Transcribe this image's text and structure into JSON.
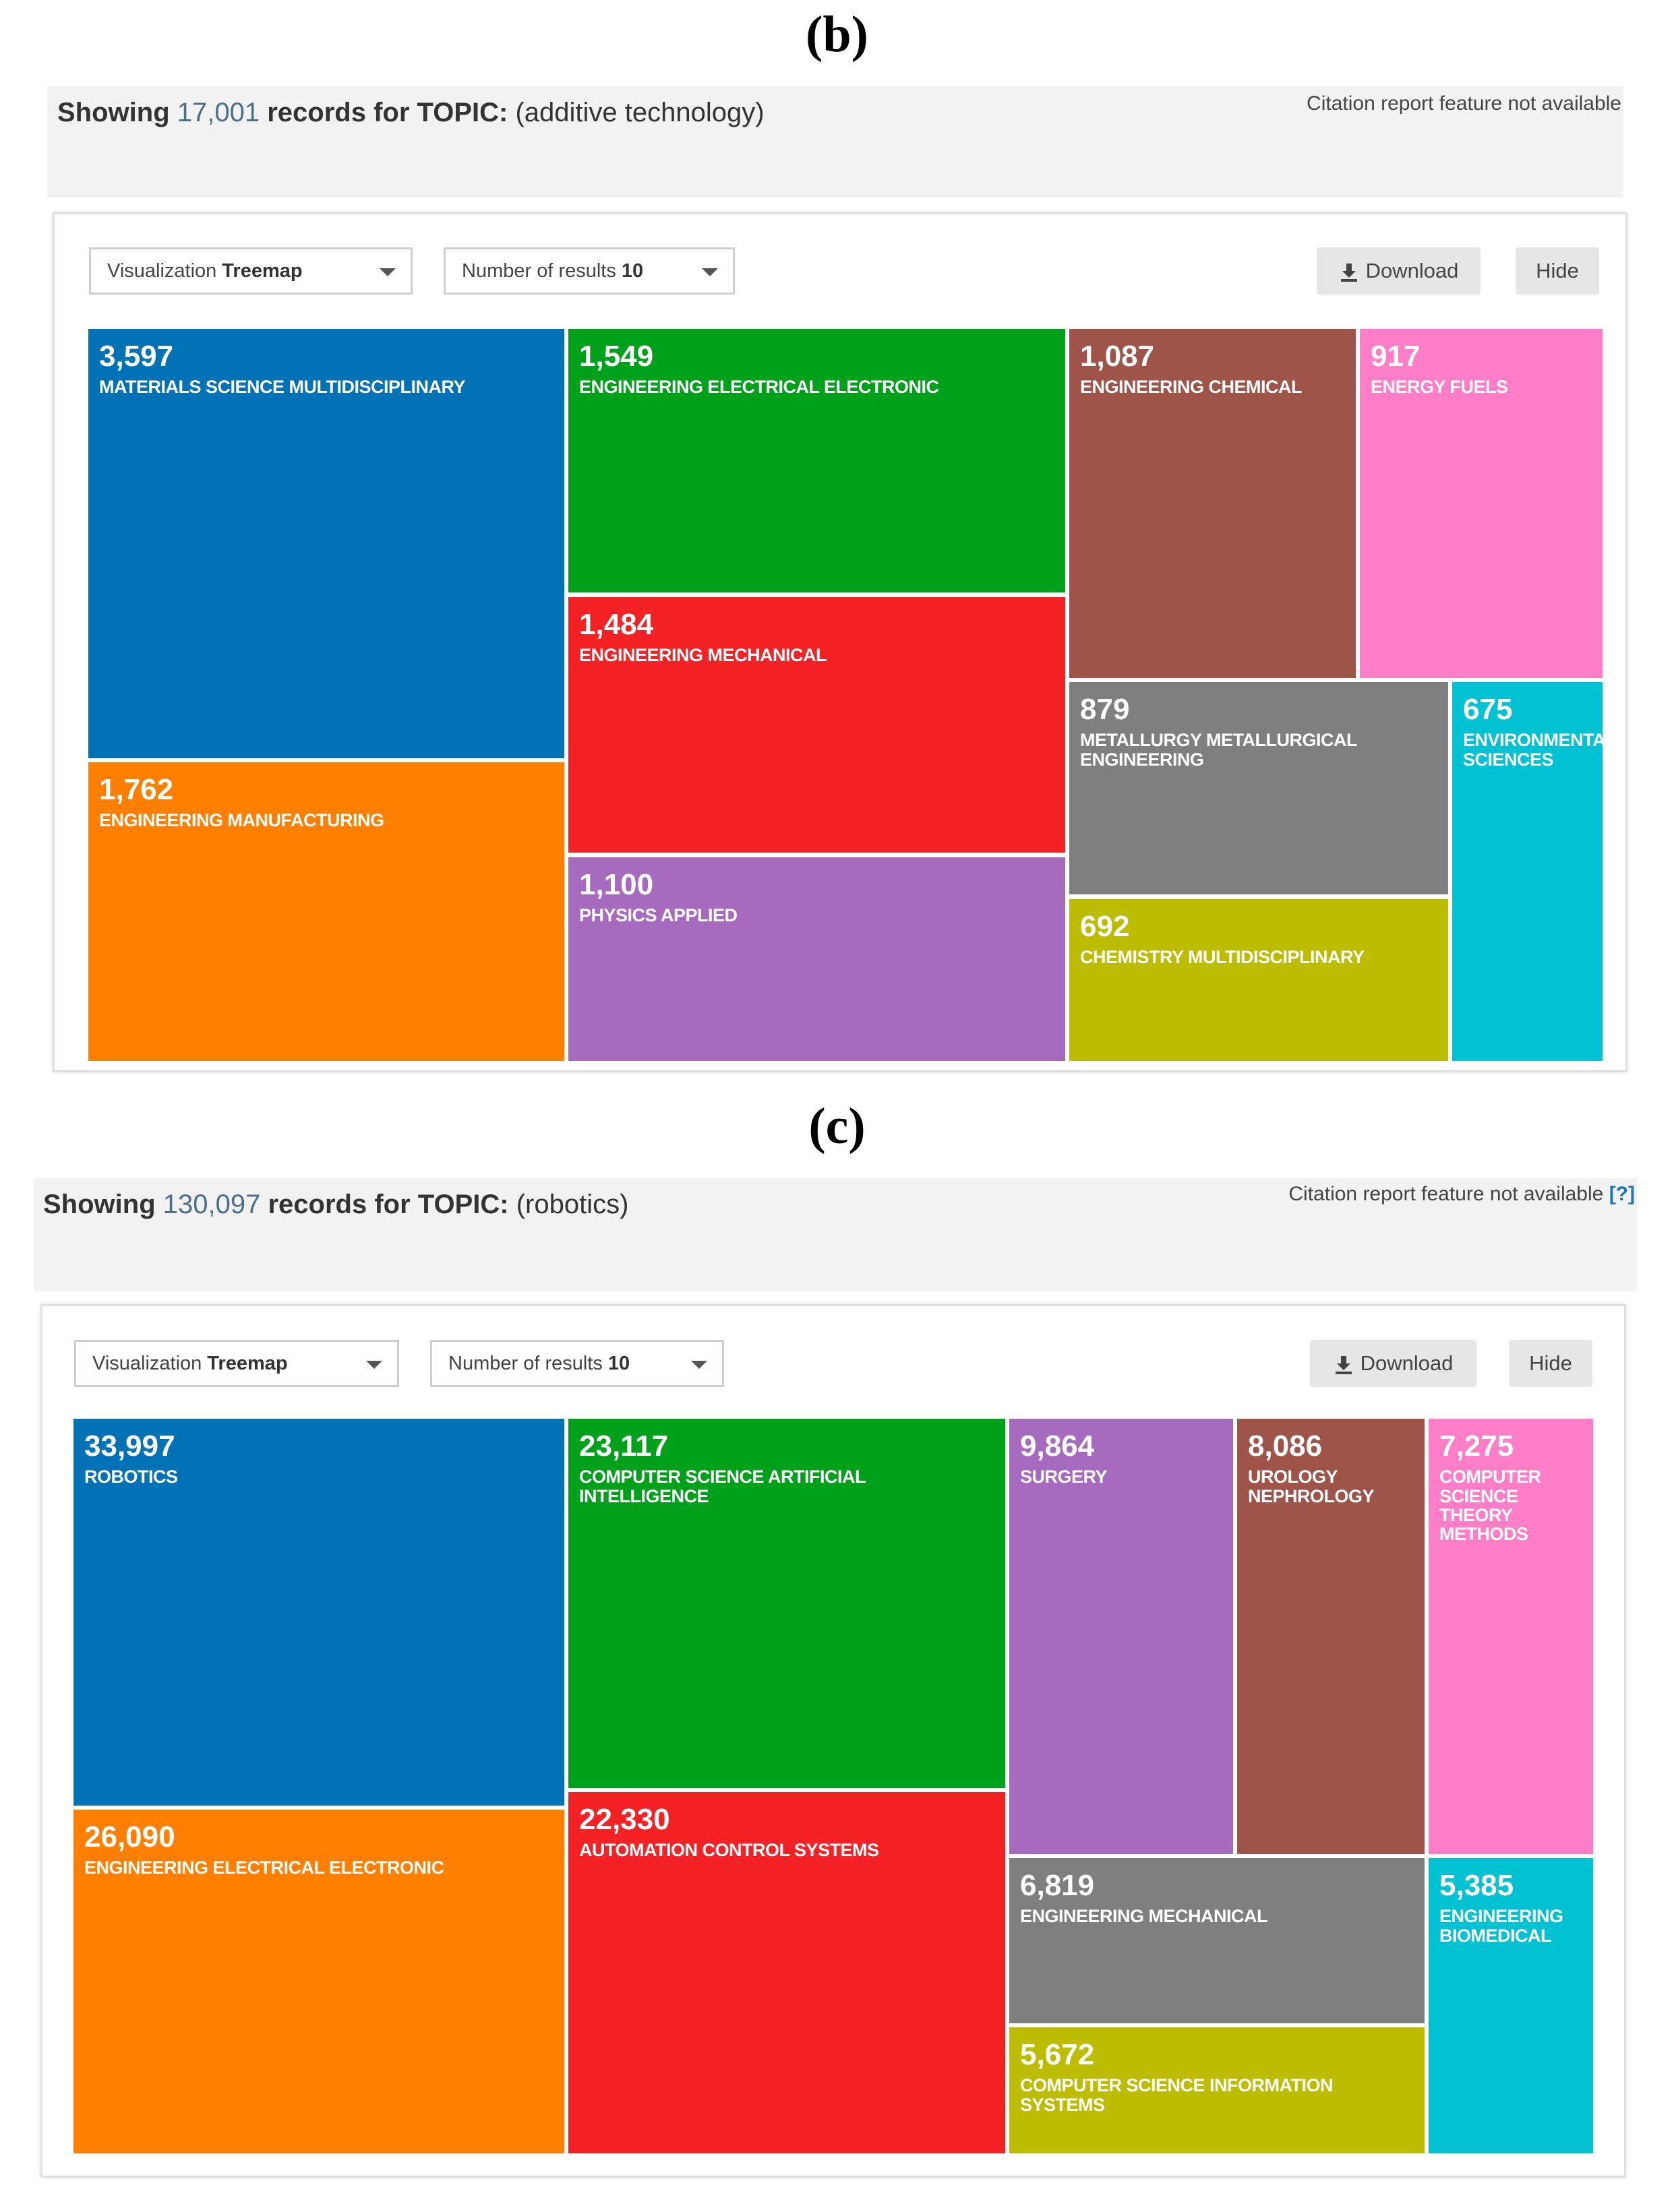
{
  "panels": [
    {
      "label": "(b)",
      "showing_prefix": "Showing",
      "count": "17,001",
      "records_for": "records for TOPIC:",
      "query": "(additive technology)",
      "citation_note": "Citation report feature not available",
      "citation_help": "",
      "visualization_label": "Visualization",
      "visualization_value": "Treemap",
      "results_label": "Number of results",
      "results_value": "10",
      "download_label": "Download",
      "hide_label": "Hide",
      "tiles": [
        {
          "value": "3,597",
          "label": "MATERIALS SCIENCE MULTIDISCIPLINARY",
          "color": "#0072b5"
        },
        {
          "value": "1,549",
          "label": "ENGINEERING ELECTRICAL ELECTRONIC",
          "color": "#00a11a"
        },
        {
          "value": "1,087",
          "label": "ENGINEERING CHEMICAL",
          "color": "#9e5448"
        },
        {
          "value": "917",
          "label": "ENERGY FUELS",
          "color": "#ff7ec7"
        },
        {
          "value": "1,484",
          "label": "ENGINEERING MECHANICAL",
          "color": "#f52225"
        },
        {
          "value": "879",
          "label": "METALLURGY METALLURGICAL ENGINEERING",
          "color": "#7f7f7f"
        },
        {
          "value": "675",
          "label": "ENVIRONMENTAL SCIENCES",
          "color": "#00c2d2"
        },
        {
          "value": "1,762",
          "label": "ENGINEERING MANUFACTURING",
          "color": "#ff7f00"
        },
        {
          "value": "1,100",
          "label": "PHYSICS APPLIED",
          "color": "#a66bbe"
        },
        {
          "value": "692",
          "label": "CHEMISTRY MULTIDISCIPLINARY",
          "color": "#bcbd00"
        }
      ]
    },
    {
      "label": "(c)",
      "showing_prefix": "Showing",
      "count": "130,097",
      "records_for": "records for TOPIC:",
      "query": "(robotics)",
      "citation_note": "Citation report feature not available",
      "citation_help": "[?]",
      "visualization_label": "Visualization",
      "visualization_value": "Treemap",
      "results_label": "Number of results",
      "results_value": "10",
      "download_label": "Download",
      "hide_label": "Hide",
      "tiles": [
        {
          "value": "33,997",
          "label": "ROBOTICS",
          "color": "#0072b5"
        },
        {
          "value": "23,117",
          "label": "COMPUTER SCIENCE ARTIFICIAL INTELLIGENCE",
          "color": "#00a11a"
        },
        {
          "value": "9,864",
          "label": "SURGERY",
          "color": "#a66bbe"
        },
        {
          "value": "8,086",
          "label": "UROLOGY NEPHROLOGY",
          "color": "#9e5448"
        },
        {
          "value": "7,275",
          "label": "COMPUTER SCIENCE THEORY METHODS",
          "color": "#ff7ec7"
        },
        {
          "value": "26,090",
          "label": "ENGINEERING ELECTRICAL ELECTRONIC",
          "color": "#ff7f00"
        },
        {
          "value": "22,330",
          "label": "AUTOMATION CONTROL SYSTEMS",
          "color": "#f52225"
        },
        {
          "value": "6,819",
          "label": "ENGINEERING MECHANICAL",
          "color": "#7f7f7f"
        },
        {
          "value": "5,385",
          "label": "ENGINEERING BIOMEDICAL",
          "color": "#00c2d2"
        },
        {
          "value": "5,672",
          "label": "COMPUTER SCIENCE INFORMATION SYSTEMS",
          "color": "#bcbd00"
        }
      ]
    }
  ]
}
